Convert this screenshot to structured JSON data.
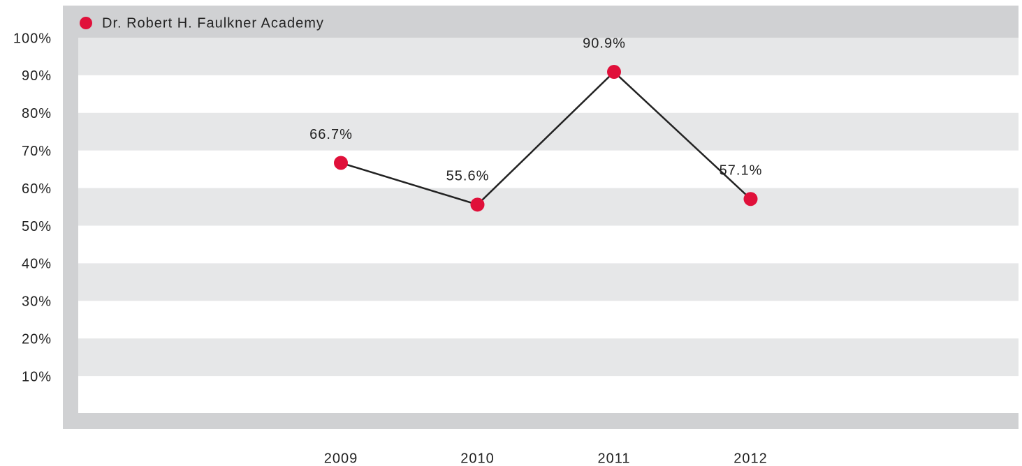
{
  "chart_data": {
    "type": "line",
    "categories": [
      "2009",
      "2010",
      "2011",
      "2012"
    ],
    "series": [
      {
        "name": "Dr. Robert H. Faulkner Academy",
        "color": "#e0103a",
        "values": [
          66.7,
          55.6,
          90.9,
          57.1
        ],
        "value_labels": [
          "66.7%",
          "55.6%",
          "90.9%",
          "57.1%"
        ]
      }
    ],
    "ylim": [
      0,
      100
    ],
    "yticks": [
      {
        "value": 10,
        "label": "10%"
      },
      {
        "value": 20,
        "label": "20%"
      },
      {
        "value": 30,
        "label": "30%"
      },
      {
        "value": 40,
        "label": "40%"
      },
      {
        "value": 50,
        "label": "50%"
      },
      {
        "value": 60,
        "label": "60%"
      },
      {
        "value": 70,
        "label": "70%"
      },
      {
        "value": 80,
        "label": "80%"
      },
      {
        "value": 90,
        "label": "90%"
      },
      {
        "value": 100,
        "label": "100%"
      }
    ],
    "grid": true,
    "line_color": "#222222"
  }
}
